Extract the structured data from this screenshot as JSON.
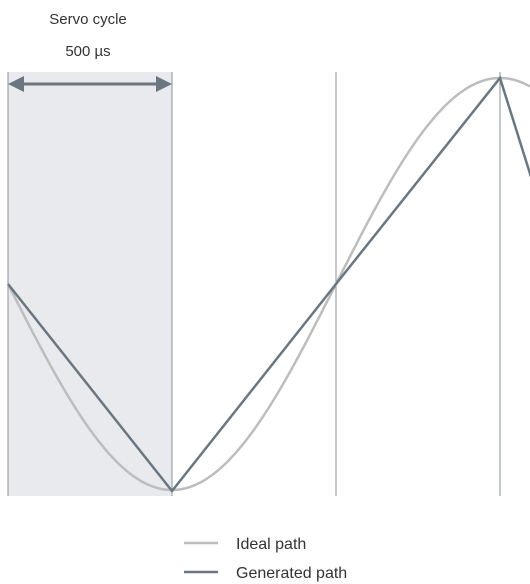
{
  "annotation": {
    "title": "Servo cycle",
    "value": "500 µs"
  },
  "legend": {
    "items": [
      {
        "label": "Ideal path",
        "color": "#bdbdbd"
      },
      {
        "label": "Generated path",
        "color": "#6b7780"
      }
    ]
  },
  "colors": {
    "shaded_cycle": "#e8eaed",
    "cycle_lines": "#7d868c",
    "arrow": "#6b7780",
    "ideal_path": "#bdbdbd",
    "generated_path": "#6b7780",
    "text": "#333333"
  }
}
